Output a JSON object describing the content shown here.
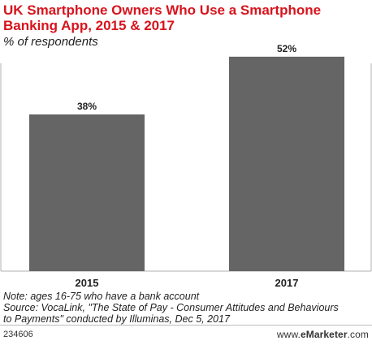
{
  "title": "UK Smartphone Owners Who Use a Smartphone Banking App, 2015 & 2017",
  "subtitle": "% of respondents",
  "colors": {
    "title": "#d7141d",
    "bar": "#656565",
    "axis": "#b0b0b0",
    "text": "#222222"
  },
  "chart_data": {
    "type": "bar",
    "title": "UK Smartphone Owners Who Use a Smartphone Banking App, 2015 & 2017",
    "subtitle": "% of respondents",
    "categories": [
      "2015",
      "2017"
    ],
    "values": [
      38,
      52
    ],
    "value_labels": [
      "38%",
      "52%"
    ],
    "unit": "%",
    "ylim": [
      0,
      60
    ],
    "grid": false,
    "legend": "none"
  },
  "notes": {
    "line1": "Note: ages 16-75 who have a bank account",
    "line2": "Source: VocaLink, \"The State of Pay - Consumer Attitudes and Behaviours",
    "line3": "to Payments\" conducted by Illuminas, Dec 5, 2017"
  },
  "footer": {
    "id": "234606",
    "brand_prefix": "www.",
    "brand": "eMarketer",
    "brand_suffix": ".com"
  }
}
